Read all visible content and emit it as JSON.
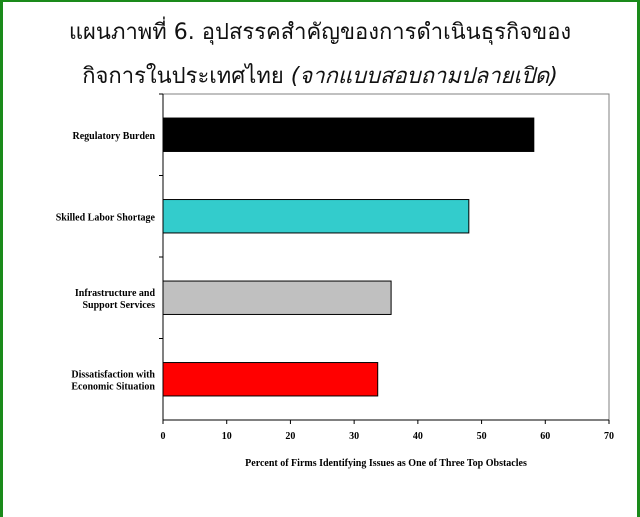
{
  "title": {
    "line1": "แผนภาพที่  6. อุปสรรคสำคัญของการดำเนินธุรกิจของ",
    "line2_main": "กิจการในประเทศไทย ",
    "line2_italic": "(จากแบบสอบถามปลายเปิด)"
  },
  "chart_data": {
    "type": "bar",
    "orientation": "horizontal",
    "categories": [
      [
        "Regulatory Burden"
      ],
      [
        "Skilled Labor Shortage"
      ],
      [
        "Infrastructure and",
        "Support Services"
      ],
      [
        "Dissatisfaction with",
        "Economic Situation"
      ]
    ],
    "values": [
      58.2,
      48.0,
      35.8,
      33.7
    ],
    "colors": [
      "#000000",
      "#33cccc",
      "#c0c0c0",
      "#ff0000"
    ],
    "xlabel": "Percent of Firms Identifying Issues as One of Three Top Obstacles",
    "xlim": [
      0,
      70
    ],
    "xticks": [
      0,
      10,
      20,
      30,
      40,
      50,
      60,
      70
    ],
    "grid": false
  }
}
